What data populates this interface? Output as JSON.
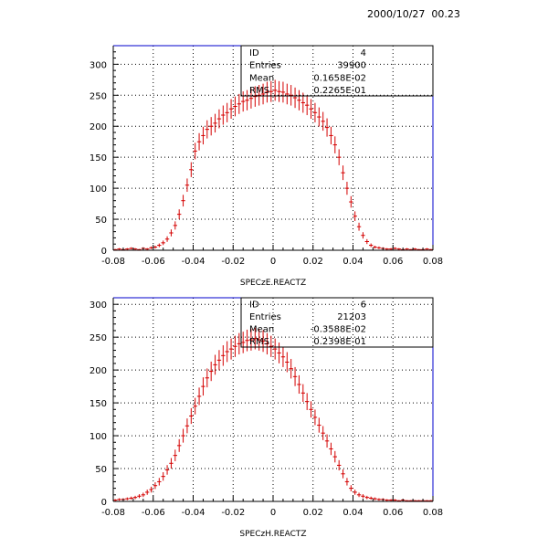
{
  "datetime": "2000/10/27  00.23",
  "chart_data": [
    {
      "type": "histogram",
      "id": "4",
      "xlabel": "SPECzE.REACTZ",
      "xlim": [
        -0.08,
        0.08
      ],
      "ylim": [
        0,
        330
      ],
      "x_ticks": [
        "-0.08",
        "-0.06",
        "-0.04",
        "-0.02",
        "0",
        "0.02",
        "0.04",
        "0.06",
        "0.08"
      ],
      "y_ticks": [
        "0",
        "50",
        "100",
        "150",
        "200",
        "250",
        "300"
      ],
      "grid": true,
      "stats": [
        {
          "label": "ID",
          "value": "4"
        },
        {
          "label": "Entries",
          "value": "39900"
        },
        {
          "label": "Mean",
          "value": "0.1658E-02"
        },
        {
          "label": "RMS",
          "value": "0.2265E-01"
        }
      ],
      "x": [
        -0.08,
        -0.078,
        -0.076,
        -0.074,
        -0.072,
        -0.07,
        -0.068,
        -0.066,
        -0.064,
        -0.062,
        -0.06,
        -0.058,
        -0.056,
        -0.054,
        -0.052,
        -0.05,
        -0.048,
        -0.046,
        -0.044,
        -0.042,
        -0.04,
        -0.038,
        -0.036,
        -0.034,
        -0.032,
        -0.03,
        -0.028,
        -0.026,
        -0.024,
        -0.022,
        -0.02,
        -0.018,
        -0.016,
        -0.014,
        -0.012,
        -0.01,
        -0.008,
        -0.006,
        -0.004,
        -0.002,
        0,
        0.002,
        0.004,
        0.006,
        0.008,
        0.01,
        0.012,
        0.014,
        0.016,
        0.018,
        0.02,
        0.022,
        0.024,
        0.026,
        0.028,
        0.03,
        0.032,
        0.034,
        0.036,
        0.038,
        0.04,
        0.042,
        0.044,
        0.046,
        0.048,
        0.05,
        0.052,
        0.054,
        0.056,
        0.058,
        0.06,
        0.062,
        0.064,
        0.066,
        0.068,
        0.07,
        0.072,
        0.074,
        0.076,
        0.078
      ],
      "values": [
        1,
        2,
        1,
        2,
        3,
        2,
        1,
        3,
        2,
        4,
        5,
        8,
        12,
        18,
        28,
        40,
        58,
        80,
        105,
        130,
        160,
        175,
        185,
        195,
        200,
        205,
        212,
        218,
        222,
        228,
        232,
        236,
        240,
        242,
        245,
        248,
        250,
        252,
        255,
        256,
        258,
        256,
        255,
        252,
        250,
        246,
        242,
        238,
        234,
        228,
        222,
        215,
        208,
        198,
        185,
        170,
        150,
        125,
        100,
        78,
        55,
        38,
        24,
        14,
        8,
        5,
        4,
        3,
        2,
        2,
        3,
        2,
        1,
        2,
        1,
        2,
        1,
        1,
        2,
        1
      ]
    },
    {
      "type": "histogram",
      "id": "6",
      "xlabel": "SPECzH.REACTZ",
      "xlim": [
        -0.08,
        0.08
      ],
      "ylim": [
        0,
        310
      ],
      "x_ticks": [
        "-0.08",
        "-0.06",
        "-0.04",
        "-0.02",
        "0",
        "0.02",
        "0.04",
        "0.06",
        "0.08"
      ],
      "y_ticks": [
        "0",
        "50",
        "100",
        "150",
        "200",
        "250",
        "300"
      ],
      "grid": true,
      "stats": [
        {
          "label": "ID",
          "value": "6"
        },
        {
          "label": "Entries",
          "value": "21203"
        },
        {
          "label": "Mean",
          "value": "-0.3588E-02"
        },
        {
          "label": "RMS",
          "value": "0.2398E-01"
        }
      ],
      "x": [
        -0.08,
        -0.078,
        -0.076,
        -0.074,
        -0.072,
        -0.07,
        -0.068,
        -0.066,
        -0.064,
        -0.062,
        -0.06,
        -0.058,
        -0.056,
        -0.054,
        -0.052,
        -0.05,
        -0.048,
        -0.046,
        -0.044,
        -0.042,
        -0.04,
        -0.038,
        -0.036,
        -0.034,
        -0.032,
        -0.03,
        -0.028,
        -0.026,
        -0.024,
        -0.022,
        -0.02,
        -0.018,
        -0.016,
        -0.014,
        -0.012,
        -0.01,
        -0.008,
        -0.006,
        -0.004,
        -0.002,
        0,
        0.002,
        0.004,
        0.006,
        0.008,
        0.01,
        0.012,
        0.014,
        0.016,
        0.018,
        0.02,
        0.022,
        0.024,
        0.026,
        0.028,
        0.03,
        0.032,
        0.034,
        0.036,
        0.038,
        0.04,
        0.042,
        0.044,
        0.046,
        0.048,
        0.05,
        0.052,
        0.054,
        0.056,
        0.058,
        0.06,
        0.062,
        0.064,
        0.066,
        0.068,
        0.07,
        0.072,
        0.074,
        0.076,
        0.078
      ],
      "values": [
        2,
        3,
        3,
        4,
        5,
        6,
        8,
        10,
        14,
        18,
        24,
        30,
        38,
        48,
        58,
        70,
        85,
        100,
        115,
        130,
        145,
        160,
        175,
        188,
        198,
        208,
        215,
        222,
        228,
        232,
        236,
        240,
        242,
        245,
        246,
        248,
        246,
        244,
        240,
        236,
        232,
        226,
        220,
        212,
        202,
        190,
        178,
        165,
        152,
        140,
        128,
        116,
        104,
        92,
        80,
        68,
        55,
        42,
        30,
        20,
        14,
        10,
        8,
        6,
        5,
        4,
        3,
        3,
        2,
        2,
        2,
        1,
        2,
        1,
        1,
        1,
        1,
        1,
        1,
        1
      ]
    }
  ]
}
